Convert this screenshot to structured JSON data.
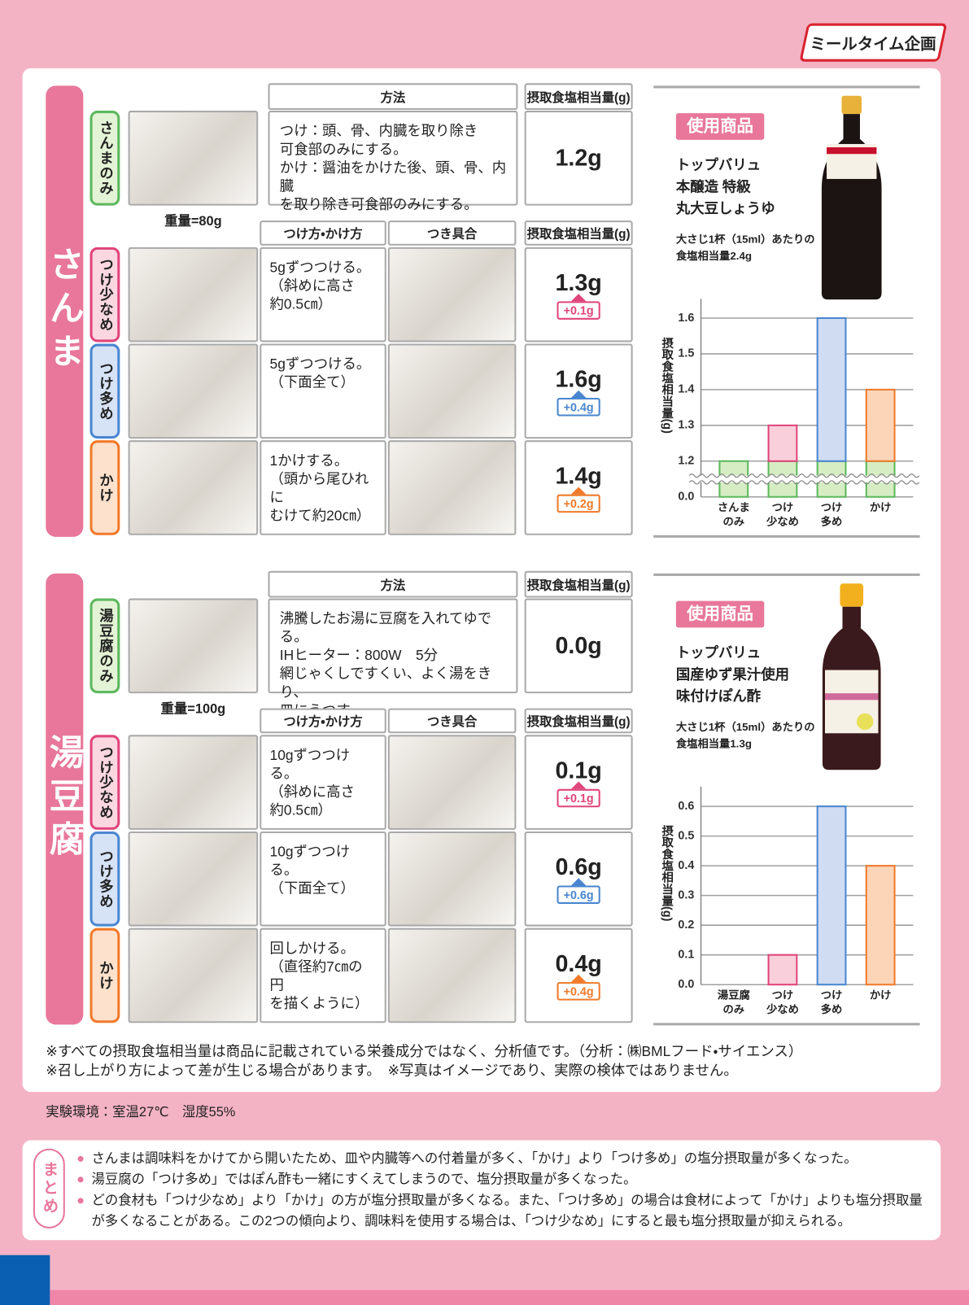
{
  "header": {
    "brand": "ミールタイム企画"
  },
  "sections": [
    {
      "label": "さんま",
      "base": {
        "tag": "さんまのみ",
        "weight": "重量=80g",
        "method_header": "方法",
        "salt_header": "摂取食塩相当量(g)",
        "method": "つけ：頭、骨、内臓を取り除き\n可食部のみにする。\nかけ：醤油をかけた後、頭、骨、内臓\nを取り除き可食部のみにする。",
        "salt": "1.2g"
      },
      "row_headers": [
        "つけ方・かけ方",
        "つき具合",
        "摂取食塩相当量(g)"
      ],
      "rows": [
        {
          "tag": "つけ少なめ",
          "method": "5gずつつける。\n（斜めに高さ\n約0.5㎝）",
          "salt": "1.3g",
          "diff": "+0.1g"
        },
        {
          "tag": "つけ多め",
          "method": "5gずつつける。\n（下面全て）",
          "salt": "1.6g",
          "diff": "+0.4g"
        },
        {
          "tag": "かけ",
          "method": "1かけする。\n（頭から尾ひれに\nむけて約20㎝）",
          "salt": "1.4g",
          "diff": "+0.2g"
        }
      ],
      "product": {
        "badge": "使用商品",
        "name": "トップバリュ\n本醸造 特級\n丸大豆しょうゆ",
        "note": "大さじ1杯（15ml）あたりの\n食塩相当量2.4g"
      }
    },
    {
      "label": "湯豆腐",
      "base": {
        "tag": "湯豆腐のみ",
        "weight": "重量=100g",
        "method_header": "方法",
        "salt_header": "摂取食塩相当量(g)",
        "method": "沸騰したお湯に豆腐を入れてゆでる。\nIHヒーター：800W　5分\n網じゃくしですくい、よく湯をきり、\n皿にうつす。",
        "salt": "0.0g"
      },
      "row_headers": [
        "つけ方・かけ方",
        "つき具合",
        "摂取食塩相当量(g)"
      ],
      "rows": [
        {
          "tag": "つけ少なめ",
          "method": "10gずつつける。\n（斜めに高さ\n約0.5㎝）",
          "salt": "0.1g",
          "diff": "+0.1g"
        },
        {
          "tag": "つけ多め",
          "method": "10gずつつける。\n（下面全て）",
          "salt": "0.6g",
          "diff": "+0.6g"
        },
        {
          "tag": "かけ",
          "method": "回しかける。\n（直径約7㎝の円\nを描くように）",
          "salt": "0.4g",
          "diff": "+0.4g"
        }
      ],
      "product": {
        "badge": "使用商品",
        "name": "トップバリュ\n国産ゆず果汁使用\n味付けぽん酢",
        "note": "大さじ1杯（15ml）あたりの\n食塩相当量1.3g"
      }
    }
  ],
  "chart_data": [
    {
      "type": "bar",
      "ylabel": "摂取食塩相当量(g)",
      "categories": [
        "さんま\nのみ",
        "つけ\n少なめ",
        "つけ\n多め",
        "かけ"
      ],
      "values": [
        1.2,
        1.3,
        1.6,
        1.4
      ],
      "colors": [
        "#d6edc4",
        "#f9cfdb",
        "#cfdcf2",
        "#fcd5b9"
      ],
      "edge_colors": [
        "#5cb85c",
        "#e0457b",
        "#4a86d0",
        "#f07a2a"
      ],
      "ylim": [
        0,
        1.64
      ],
      "axis_break": [
        0.05,
        1.15
      ],
      "yticks": [
        {
          "value": 0,
          "label": "0.0"
        },
        1.2,
        1.3,
        1.4,
        1.5,
        1.6
      ],
      "grid": true
    },
    {
      "type": "bar",
      "ylabel": "摂取食塩相当量(g)",
      "categories": [
        "湯豆腐\nのみ",
        "つけ\n少なめ",
        "つけ\n多め",
        "かけ"
      ],
      "values": [
        0,
        0.1,
        0.6,
        0.4
      ],
      "colors": [
        "#d6edc4",
        "#f9cfdb",
        "#cfdcf2",
        "#fcd5b9"
      ],
      "edge_colors": [
        "#5cb85c",
        "#e0457b",
        "#4a86d0",
        "#f07a2a"
      ],
      "ylim": [
        0,
        0.65
      ],
      "yticks": [
        {
          "value": 0,
          "label": "0.0"
        },
        0.1,
        0.2,
        0.3,
        0.4,
        0.5,
        0.6
      ],
      "grid": true
    }
  ],
  "notes": [
    "※すべての摂取食塩相当量は商品に記載されている栄養成分ではなく、分析値です。（分析：㈱BMLフード・サイエンス）",
    "※召し上がり方によって差が生じる場合があります。　※写真はイメージであり、実際の検体ではありません。"
  ],
  "environment": "実験環境：室温27℃　湿度55%",
  "summary": {
    "title": "まとめ",
    "items": [
      "さんまは調味料をかけてから開いたため、皿や内臓等への付着量が多く、「かけ」より「つけ多め」の塩分摂取量が多くなった。",
      "湯豆腐の「つけ多め」ではぽん酢も一緒にすくえてしまうので、塩分摂取量が多くなった。",
      "どの食材も「つけ少なめ」より「かけ」の方が塩分摂取量が多くなる。また、「つけ多め」の場合は食材によって「かけ」よりも塩分摂取量が多くなることがある。この2つの傾向より、調味料を使用する場合は、「つけ少なめ」にすると最も塩分摂取量が抑えられる。"
    ]
  }
}
